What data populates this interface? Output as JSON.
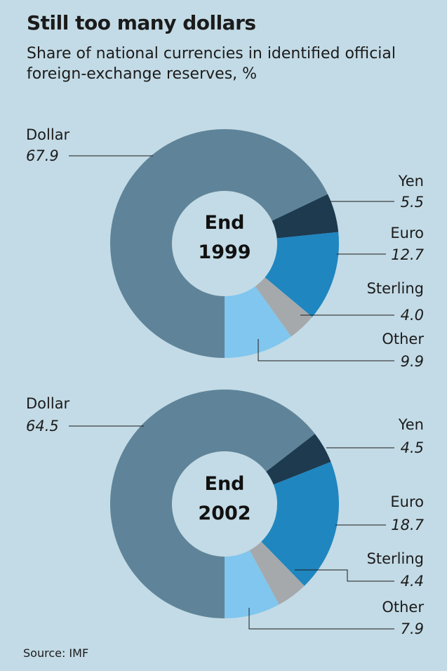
{
  "title": "Still too many dollars",
  "subtitle": "Share of national currencies in identified official foreign-exchange reserves, %",
  "source": "Source: IMF",
  "colors": {
    "Dollar": "#5f8499",
    "Yen": "#1d3a4f",
    "Euro": "#1f86c0",
    "Sterling": "#a5a9ab",
    "Other": "#80c6ef",
    "background": "#c3dbe6"
  },
  "chart_data": [
    {
      "type": "pie",
      "variant": "donut",
      "center_label": [
        "End",
        "1999"
      ],
      "categories": [
        "Dollar",
        "Yen",
        "Euro",
        "Sterling",
        "Other"
      ],
      "values": [
        67.9,
        5.5,
        12.7,
        4.0,
        9.9
      ],
      "value_labels": [
        "67.9",
        "5.5",
        "12.7",
        "4.0",
        "9.9"
      ]
    },
    {
      "type": "pie",
      "variant": "donut",
      "center_label": [
        "End",
        "2002"
      ],
      "categories": [
        "Dollar",
        "Yen",
        "Euro",
        "Sterling",
        "Other"
      ],
      "values": [
        64.5,
        4.5,
        18.7,
        4.4,
        7.9
      ],
      "value_labels": [
        "64.5",
        "4.5",
        "18.7",
        "4.4",
        "7.9"
      ]
    }
  ]
}
